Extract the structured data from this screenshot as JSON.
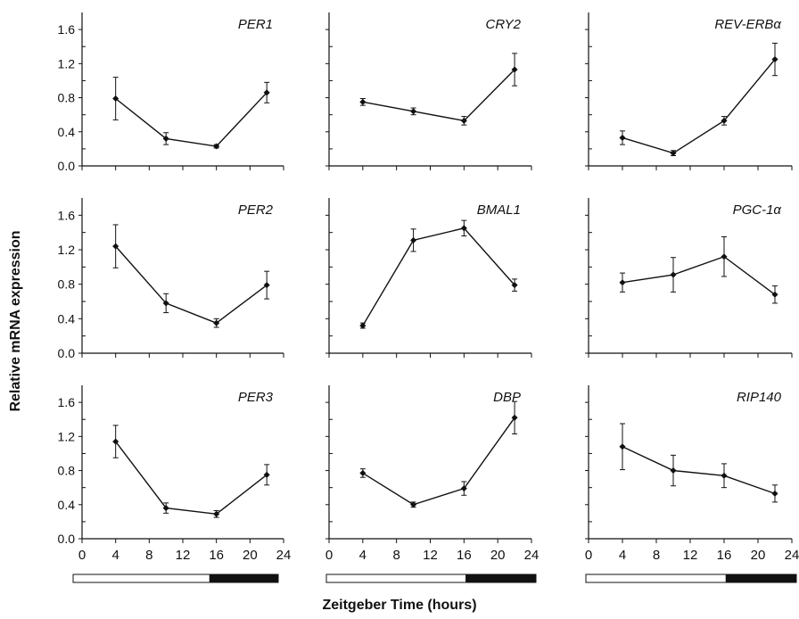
{
  "figure": {
    "ylabel": "Relative mRNA expression",
    "xlabel": "Zeitgeber Time (hours)"
  },
  "chart_data": [
    {
      "type": "line",
      "title": "PER1",
      "x": [
        4,
        10,
        16,
        22
      ],
      "y": [
        0.79,
        0.32,
        0.23,
        0.86
      ],
      "err": [
        0.25,
        0.07,
        0.02,
        0.12
      ],
      "ylim": [
        0,
        1.8
      ],
      "xlim": [
        0,
        24
      ],
      "yticks": [
        "0.0",
        "0.4",
        "0.8",
        "1.2",
        "1.6"
      ],
      "xticks": []
    },
    {
      "type": "line",
      "title": "CRY2",
      "x": [
        4,
        10,
        16,
        22
      ],
      "y": [
        0.75,
        0.64,
        0.53,
        1.13
      ],
      "err": [
        0.04,
        0.04,
        0.05,
        0.19
      ],
      "ylim": [
        0,
        1.8
      ],
      "xlim": [
        0,
        24
      ],
      "yticks": [],
      "xticks": []
    },
    {
      "type": "line",
      "title": "REV-ERBα",
      "x": [
        4,
        10,
        16,
        22
      ],
      "y": [
        0.33,
        0.15,
        0.53,
        1.25
      ],
      "err": [
        0.08,
        0.03,
        0.05,
        0.19
      ],
      "ylim": [
        0,
        1.8
      ],
      "xlim": [
        0,
        24
      ],
      "yticks": [],
      "xticks": []
    },
    {
      "type": "line",
      "title": "PER2",
      "x": [
        4,
        10,
        16,
        22
      ],
      "y": [
        1.24,
        0.58,
        0.35,
        0.79
      ],
      "err": [
        0.25,
        0.11,
        0.05,
        0.16
      ],
      "ylim": [
        0,
        1.8
      ],
      "xlim": [
        0,
        24
      ],
      "yticks": [
        "0.0",
        "0.4",
        "0.8",
        "1.2",
        "1.6"
      ],
      "xticks": []
    },
    {
      "type": "line",
      "title": "BMAL1",
      "x": [
        4,
        10,
        16,
        22
      ],
      "y": [
        0.32,
        1.31,
        1.45,
        0.79
      ],
      "err": [
        0.03,
        0.13,
        0.09,
        0.07
      ],
      "ylim": [
        0,
        1.8
      ],
      "xlim": [
        0,
        24
      ],
      "yticks": [],
      "xticks": []
    },
    {
      "type": "line",
      "title": "PGC-1α",
      "x": [
        4,
        10,
        16,
        22
      ],
      "y": [
        0.82,
        0.91,
        1.12,
        0.68
      ],
      "err": [
        0.11,
        0.2,
        0.23,
        0.1
      ],
      "ylim": [
        0,
        1.8
      ],
      "xlim": [
        0,
        24
      ],
      "yticks": [],
      "xticks": []
    },
    {
      "type": "line",
      "title": "PER3",
      "x": [
        4,
        10,
        16,
        22
      ],
      "y": [
        1.14,
        0.36,
        0.29,
        0.75
      ],
      "err": [
        0.19,
        0.06,
        0.04,
        0.12
      ],
      "ylim": [
        0,
        1.8
      ],
      "xlim": [
        0,
        24
      ],
      "yticks": [
        "0.0",
        "0.4",
        "0.8",
        "1.2",
        "1.6"
      ],
      "xticks": [
        "0",
        "4",
        "8",
        "12",
        "16",
        "20",
        "24"
      ]
    },
    {
      "type": "line",
      "title": "DBP",
      "x": [
        4,
        10,
        16,
        22
      ],
      "y": [
        0.77,
        0.4,
        0.59,
        1.42
      ],
      "err": [
        0.05,
        0.03,
        0.08,
        0.19
      ],
      "ylim": [
        0,
        1.8
      ],
      "xlim": [
        0,
        24
      ],
      "yticks": [],
      "xticks": [
        "0",
        "4",
        "8",
        "12",
        "16",
        "20",
        "24"
      ]
    },
    {
      "type": "line",
      "title": "RIP140",
      "x": [
        4,
        10,
        16,
        22
      ],
      "y": [
        1.08,
        0.8,
        0.74,
        0.53
      ],
      "err": [
        0.27,
        0.18,
        0.14,
        0.1
      ],
      "ylim": [
        0,
        1.8
      ],
      "xlim": [
        0,
        24
      ],
      "yticks": [],
      "xticks": [
        "0",
        "4",
        "8",
        "12",
        "16",
        "20",
        "24"
      ]
    }
  ],
  "light_dark_bars": [
    {
      "segments": [
        {
          "phase": "light",
          "from": 0,
          "to": 16
        },
        {
          "phase": "dark",
          "from": 16,
          "to": 24
        }
      ]
    },
    {
      "segments": [
        {
          "phase": "light",
          "from": 0,
          "to": 16
        },
        {
          "phase": "dark",
          "from": 16,
          "to": 24
        }
      ]
    },
    {
      "segments": [
        {
          "phase": "light",
          "from": 0,
          "to": 16
        },
        {
          "phase": "dark",
          "from": 16,
          "to": 24
        }
      ]
    }
  ]
}
